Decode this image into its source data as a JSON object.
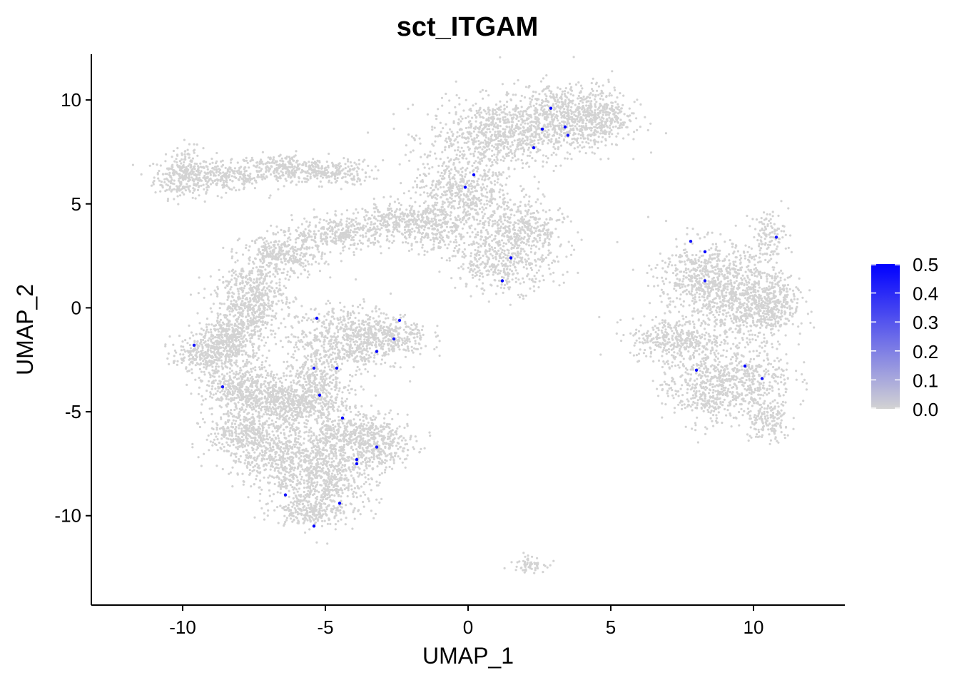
{
  "chart_data": {
    "type": "scatter",
    "title": "sct_ITGAM",
    "xlabel": "UMAP_1",
    "ylabel": "UMAP_2",
    "xlim": [
      -13.2,
      13.2
    ],
    "ylim": [
      -14.3,
      12.2
    ],
    "x_ticks": [
      -10,
      -5,
      0,
      5,
      10
    ],
    "y_ticks": [
      -10,
      -5,
      0,
      5,
      10
    ],
    "x_tick_labels": [
      "-10",
      "-5",
      "0",
      "5",
      "10"
    ],
    "y_tick_labels": [
      "-10",
      "-5",
      "0",
      "5",
      "10"
    ],
    "grid": false,
    "legend": {
      "placement": "right",
      "min": 0.0,
      "max": 0.5,
      "tick_labels": [
        "0.0",
        "0.1",
        "0.2",
        "0.3",
        "0.4",
        "0.5"
      ],
      "low_color": "#d3d3d3",
      "high_color": "#0000ff"
    },
    "colors": {
      "background_cells": "#d3d3d3",
      "expressing_cells": "#0000ff"
    },
    "highlighted_points": [
      {
        "x": 2.9,
        "y": 9.6,
        "v": 0.5
      },
      {
        "x": 3.4,
        "y": 8.7,
        "v": 0.5
      },
      {
        "x": 2.6,
        "y": 8.6,
        "v": 0.5
      },
      {
        "x": 2.3,
        "y": 7.7,
        "v": 0.5
      },
      {
        "x": 0.2,
        "y": 6.4,
        "v": 0.5
      },
      {
        "x": -0.1,
        "y": 5.8,
        "v": 0.5
      },
      {
        "x": 1.5,
        "y": 2.4,
        "v": 0.5
      },
      {
        "x": 1.2,
        "y": 1.3,
        "v": 0.5
      },
      {
        "x": -5.3,
        "y": -0.5,
        "v": 0.5
      },
      {
        "x": -4.6,
        "y": -2.9,
        "v": 0.5
      },
      {
        "x": -5.4,
        "y": -2.9,
        "v": 0.45
      },
      {
        "x": -5.2,
        "y": -4.2,
        "v": 0.5
      },
      {
        "x": -3.2,
        "y": -2.1,
        "v": 0.5
      },
      {
        "x": -4.4,
        "y": -5.3,
        "v": 0.5
      },
      {
        "x": -3.9,
        "y": -7.5,
        "v": 0.5
      },
      {
        "x": -3.9,
        "y": -7.3,
        "v": 0.5
      },
      {
        "x": -4.5,
        "y": -9.4,
        "v": 0.5
      },
      {
        "x": -5.4,
        "y": -10.5,
        "v": 0.5
      },
      {
        "x": -8.6,
        "y": -3.8,
        "v": 0.45
      },
      {
        "x": -9.6,
        "y": -1.8,
        "v": 0.45
      },
      {
        "x": -6.4,
        "y": -9.0,
        "v": 0.45
      },
      {
        "x": -3.2,
        "y": -6.7,
        "v": 0.45
      },
      {
        "x": -2.4,
        "y": -0.6,
        "v": 0.45
      },
      {
        "x": -2.6,
        "y": -1.5,
        "v": 0.45
      },
      {
        "x": 7.8,
        "y": 3.2,
        "v": 0.45
      },
      {
        "x": 8.3,
        "y": 2.7,
        "v": 0.5
      },
      {
        "x": 8.3,
        "y": 1.3,
        "v": 0.45
      },
      {
        "x": 8.0,
        "y": -3.0,
        "v": 0.5
      },
      {
        "x": 9.7,
        "y": -2.8,
        "v": 0.5
      },
      {
        "x": 10.3,
        "y": -3.4,
        "v": 0.45
      },
      {
        "x": 10.8,
        "y": 3.4,
        "v": 0.45
      },
      {
        "x": 3.5,
        "y": 8.3,
        "v": 0.45
      }
    ]
  }
}
